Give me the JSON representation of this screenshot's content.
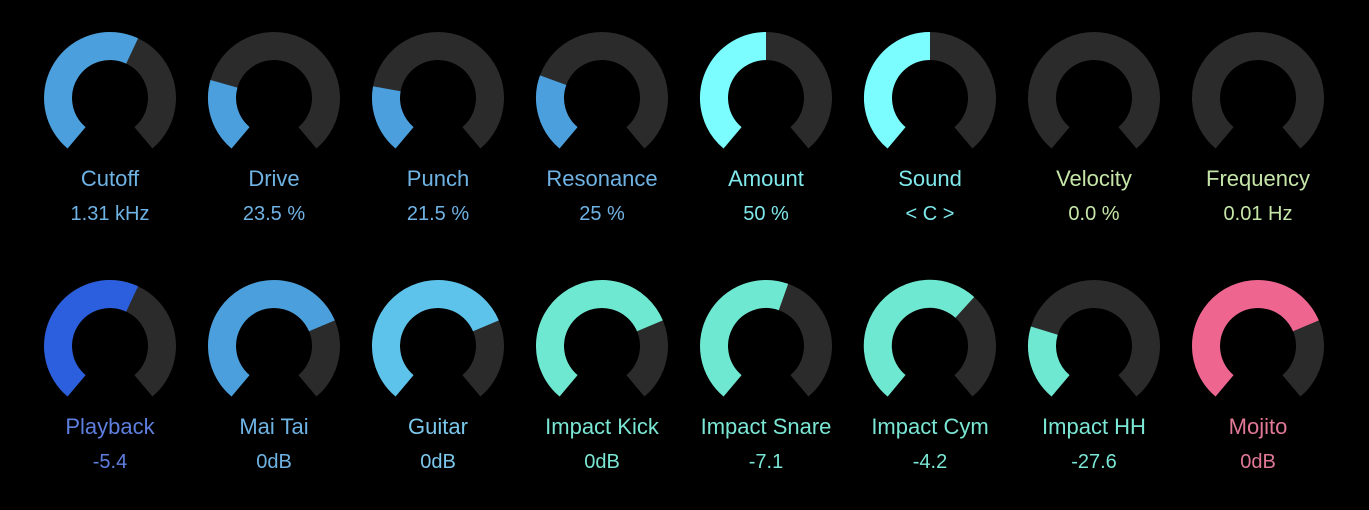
{
  "knob_rows": [
    [
      {
        "label": "Cutoff",
        "value": "1.31 kHz",
        "fraction": 0.59,
        "color": "#4a9fdc",
        "label_color": "#6fb3e4"
      },
      {
        "label": "Drive",
        "value": "23.5 %",
        "fraction": 0.235,
        "color": "#4a9fdc",
        "label_color": "#6fb3e4"
      },
      {
        "label": "Punch",
        "value": "21.5 %",
        "fraction": 0.215,
        "color": "#4a9fdc",
        "label_color": "#6fb3e4"
      },
      {
        "label": "Resonance",
        "value": "25 %",
        "fraction": 0.25,
        "color": "#4a9fdc",
        "label_color": "#6fb3e4"
      },
      {
        "label": "Amount",
        "value": "50 %",
        "fraction": 0.5,
        "color": "#7bfdff",
        "label_color": "#7fe8ea"
      },
      {
        "label": "Sound",
        "value": "< C >",
        "fraction": 0.5,
        "color": "#7bfdff",
        "label_color": "#7fe8ea"
      },
      {
        "label": "Velocity",
        "value": "0.0 %",
        "fraction": 0.0,
        "color": "#bfe8a3",
        "label_color": "#c5e6a8"
      },
      {
        "label": "Frequency",
        "value": "0.01 Hz",
        "fraction": 0.0,
        "color": "#bfe8a3",
        "label_color": "#c5e6a8"
      }
    ],
    [
      {
        "label": "Playback",
        "value": "-5.4",
        "fraction": 0.59,
        "color": "#2c5fde",
        "label_color": "#5f7fe0"
      },
      {
        "label": "Mai Tai",
        "value": "0dB",
        "fraction": 0.74,
        "color": "#4a9fdc",
        "label_color": "#6fb3e4"
      },
      {
        "label": "Guitar",
        "value": "0dB",
        "fraction": 0.74,
        "color": "#5ec3ea",
        "label_color": "#7cc8ec"
      },
      {
        "label": "Impact Kick",
        "value": "0dB",
        "fraction": 0.74,
        "color": "#6fe8d2",
        "label_color": "#7ae6d4"
      },
      {
        "label": "Impact Snare",
        "value": "-7.1",
        "fraction": 0.57,
        "color": "#6fe8d2",
        "label_color": "#7ae6d4"
      },
      {
        "label": "Impact Cym",
        "value": "-4.2",
        "fraction": 0.65,
        "color": "#6fe8d2",
        "label_color": "#7ae6d4"
      },
      {
        "label": "Impact HH",
        "value": "-27.6",
        "fraction": 0.24,
        "color": "#6fe8d2",
        "label_color": "#7ae6d4"
      },
      {
        "label": "Mojito",
        "value": "0dB",
        "fraction": 0.74,
        "color": "#ee6690",
        "label_color": "#e07896"
      }
    ]
  ],
  "theme": {
    "background": "#000000",
    "track_color": "#2b2b2b"
  }
}
